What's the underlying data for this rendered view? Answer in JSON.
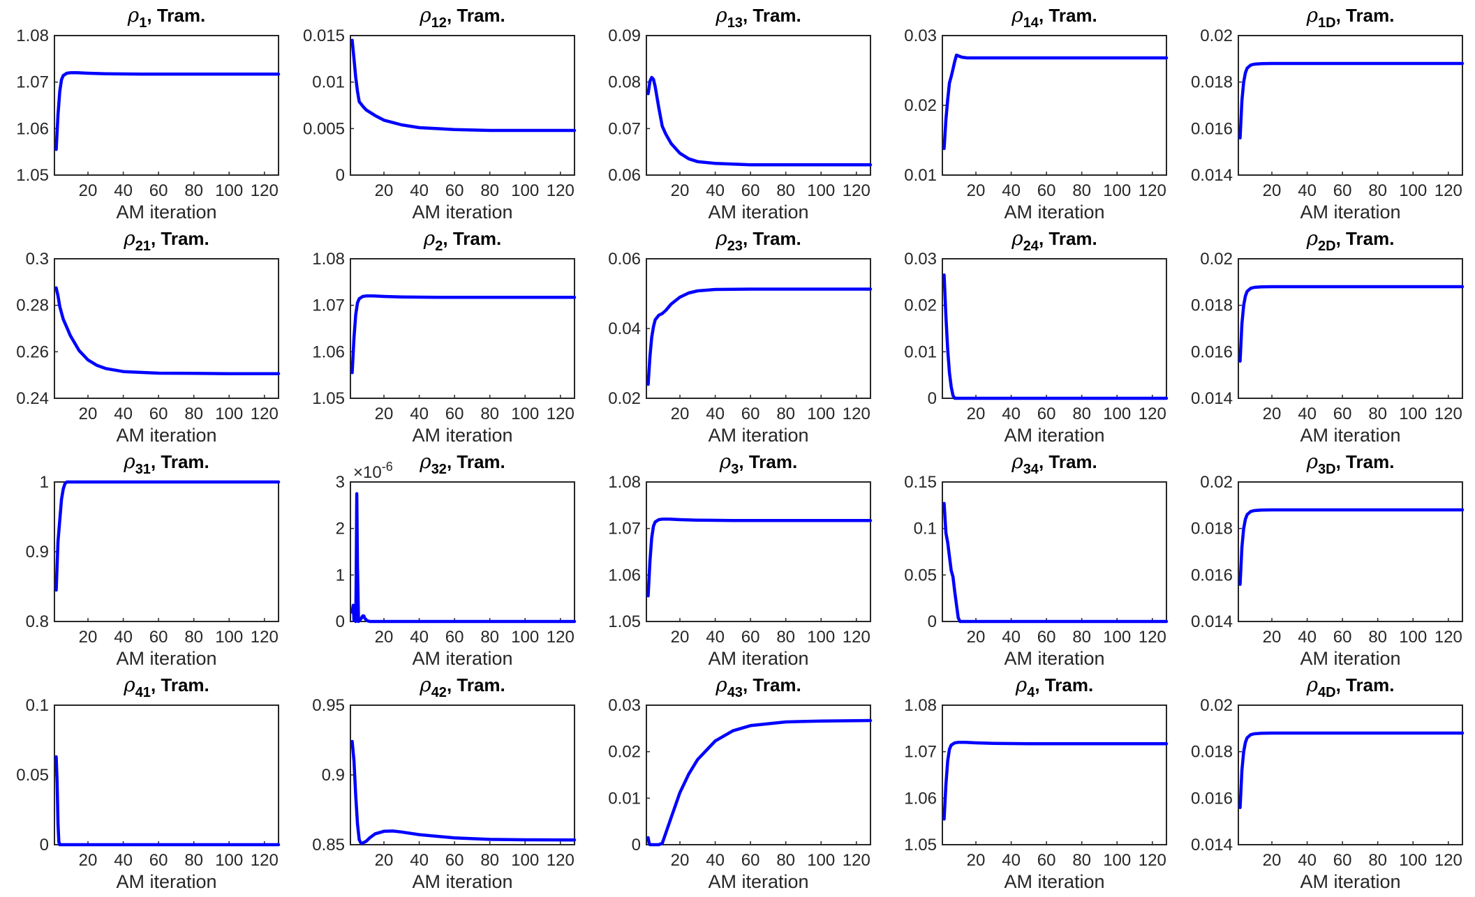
{
  "figure": {
    "line_color": "#0000FF"
  },
  "chart_data": [
    {
      "type": "line",
      "sub": "1",
      "title_suffix": ", Tram.",
      "xlabel": "AM iteration",
      "xlim": [
        1,
        128
      ],
      "ylim": [
        1.05,
        1.08
      ],
      "xticks": [
        "20",
        "40",
        "60",
        "80",
        "100",
        "120"
      ],
      "yticks": [
        "1.05",
        "1.06",
        "1.07",
        "1.08"
      ],
      "x": [
        2,
        3,
        4,
        5,
        6,
        8,
        10,
        14,
        20,
        30,
        50,
        80,
        128
      ],
      "y": [
        1.0555,
        1.063,
        1.068,
        1.0705,
        1.0714,
        1.0719,
        1.072,
        1.072,
        1.0719,
        1.0718,
        1.0717,
        1.0717,
        1.0717
      ]
    },
    {
      "type": "line",
      "sub": "12",
      "title_suffix": ", Tram.",
      "xlabel": "AM iteration",
      "xlim": [
        1,
        128
      ],
      "ylim": [
        0,
        0.015
      ],
      "xticks": [
        "20",
        "40",
        "60",
        "80",
        "100",
        "120"
      ],
      "yticks": [
        "0",
        "0.005",
        "0.01",
        "0.015"
      ],
      "x": [
        2,
        3,
        4,
        5,
        6,
        8,
        10,
        15,
        20,
        30,
        40,
        60,
        80,
        100,
        128
      ],
      "y": [
        0.0145,
        0.0125,
        0.0105,
        0.009,
        0.0079,
        0.0074,
        0.007,
        0.0064,
        0.0059,
        0.0054,
        0.0051,
        0.0049,
        0.0048,
        0.0048,
        0.0048
      ]
    },
    {
      "type": "line",
      "sub": "13",
      "title_suffix": ", Tram.",
      "xlabel": "AM iteration",
      "xlim": [
        1,
        128
      ],
      "ylim": [
        0.06,
        0.09
      ],
      "xticks": [
        "20",
        "40",
        "60",
        "80",
        "100",
        "120"
      ],
      "yticks": [
        "0.06",
        "0.07",
        "0.08",
        "0.09"
      ],
      "x": [
        2,
        3,
        4,
        5,
        6,
        8,
        10,
        12,
        15,
        20,
        25,
        30,
        40,
        60,
        80,
        100,
        128
      ],
      "y": [
        0.0775,
        0.0802,
        0.081,
        0.0806,
        0.079,
        0.0745,
        0.0705,
        0.0688,
        0.0668,
        0.0647,
        0.0635,
        0.0629,
        0.0625,
        0.0622,
        0.0622,
        0.0622,
        0.0622
      ]
    },
    {
      "type": "line",
      "sub": "14",
      "title_suffix": ", Tram.",
      "xlabel": "AM iteration",
      "xlim": [
        1,
        128
      ],
      "ylim": [
        0.01,
        0.03
      ],
      "xticks": [
        "20",
        "40",
        "60",
        "80",
        "100",
        "120"
      ],
      "yticks": [
        "0.01",
        "0.02",
        "0.03"
      ],
      "x": [
        2,
        3,
        4,
        5,
        6,
        7,
        8,
        9,
        10,
        12,
        15,
        20,
        40,
        80,
        128
      ],
      "y": [
        0.0138,
        0.018,
        0.0208,
        0.0232,
        0.0241,
        0.0252,
        0.0263,
        0.0272,
        0.0271,
        0.0269,
        0.0268,
        0.0268,
        0.0268,
        0.0268,
        0.0268
      ]
    },
    {
      "type": "line",
      "sub": "1D",
      "title_suffix": ", Tram.",
      "xlabel": "AM iteration",
      "xlim": [
        1,
        128
      ],
      "ylim": [
        0.014,
        0.02
      ],
      "xticks": [
        "20",
        "40",
        "60",
        "80",
        "100",
        "120"
      ],
      "yticks": [
        "0.014",
        "0.016",
        "0.018",
        "0.02"
      ],
      "x": [
        2,
        3,
        4,
        5,
        6,
        8,
        10,
        14,
        20,
        30,
        50,
        80,
        128
      ],
      "y": [
        0.0156,
        0.0172,
        0.018,
        0.0184,
        0.0186,
        0.01873,
        0.01877,
        0.01879,
        0.0188,
        0.0188,
        0.0188,
        0.0188,
        0.0188
      ]
    },
    {
      "type": "line",
      "sub": "21",
      "title_suffix": ", Tram.",
      "xlabel": "AM iteration",
      "xlim": [
        1,
        128
      ],
      "ylim": [
        0.24,
        0.3
      ],
      "xticks": [
        "20",
        "40",
        "60",
        "80",
        "100",
        "120"
      ],
      "yticks": [
        "0.24",
        "0.26",
        "0.28",
        "0.3"
      ],
      "x": [
        2,
        3,
        4,
        6,
        8,
        10,
        15,
        20,
        25,
        30,
        40,
        60,
        80,
        100,
        128
      ],
      "y": [
        0.2875,
        0.284,
        0.2795,
        0.274,
        0.2705,
        0.267,
        0.2605,
        0.2565,
        0.2542,
        0.2528,
        0.2515,
        0.2508,
        0.2507,
        0.2506,
        0.2506
      ]
    },
    {
      "type": "line",
      "sub": "2",
      "title_suffix": ", Tram.",
      "xlabel": "AM iteration",
      "xlim": [
        1,
        128
      ],
      "ylim": [
        1.05,
        1.08
      ],
      "xticks": [
        "20",
        "40",
        "60",
        "80",
        "100",
        "120"
      ],
      "yticks": [
        "1.05",
        "1.06",
        "1.07",
        "1.08"
      ],
      "x": [
        2,
        3,
        4,
        5,
        6,
        8,
        10,
        14,
        20,
        30,
        50,
        80,
        128
      ],
      "y": [
        1.0555,
        1.063,
        1.068,
        1.0705,
        1.0714,
        1.0719,
        1.072,
        1.072,
        1.0719,
        1.0718,
        1.0717,
        1.0717,
        1.0717
      ]
    },
    {
      "type": "line",
      "sub": "23",
      "title_suffix": ", Tram.",
      "xlabel": "AM iteration",
      "xlim": [
        1,
        128
      ],
      "ylim": [
        0.02,
        0.06
      ],
      "xticks": [
        "20",
        "40",
        "60",
        "80",
        "100",
        "120"
      ],
      "yticks": [
        "0.02",
        "0.04",
        "0.06"
      ],
      "x": [
        2,
        3,
        4,
        5,
        6,
        8,
        10,
        12,
        15,
        20,
        25,
        30,
        40,
        60,
        80,
        128
      ],
      "y": [
        0.024,
        0.032,
        0.0375,
        0.0405,
        0.0425,
        0.0438,
        0.0443,
        0.0452,
        0.047,
        0.049,
        0.0502,
        0.0508,
        0.0512,
        0.0513,
        0.0513,
        0.0513
      ]
    },
    {
      "type": "line",
      "sub": "24",
      "title_suffix": ", Tram.",
      "xlabel": "AM iteration",
      "xlim": [
        1,
        128
      ],
      "ylim": [
        0,
        0.03
      ],
      "xticks": [
        "20",
        "40",
        "60",
        "80",
        "100",
        "120"
      ],
      "yticks": [
        "0",
        "0.01",
        "0.02",
        "0.03"
      ],
      "x": [
        2,
        3,
        4,
        5,
        6,
        7,
        8,
        10,
        20,
        60,
        128
      ],
      "y": [
        0.0265,
        0.0175,
        0.0105,
        0.0055,
        0.0025,
        0.0006,
        0,
        0,
        0,
        0,
        0
      ]
    },
    {
      "type": "line",
      "sub": "2D",
      "title_suffix": ", Tram.",
      "xlabel": "AM iteration",
      "xlim": [
        1,
        128
      ],
      "ylim": [
        0.014,
        0.02
      ],
      "xticks": [
        "20",
        "40",
        "60",
        "80",
        "100",
        "120"
      ],
      "yticks": [
        "0.014",
        "0.016",
        "0.018",
        "0.02"
      ],
      "x": [
        2,
        3,
        4,
        5,
        6,
        8,
        10,
        14,
        20,
        30,
        50,
        80,
        128
      ],
      "y": [
        0.0156,
        0.0172,
        0.018,
        0.0184,
        0.0186,
        0.01873,
        0.01877,
        0.01879,
        0.0188,
        0.0188,
        0.0188,
        0.0188,
        0.0188
      ]
    },
    {
      "type": "line",
      "sub": "31",
      "title_suffix": ", Tram.",
      "xlabel": "AM iteration",
      "xlim": [
        1,
        128
      ],
      "ylim": [
        0.8,
        1
      ],
      "xticks": [
        "20",
        "40",
        "60",
        "80",
        "100",
        "120"
      ],
      "yticks": [
        "0.8",
        "0.9",
        "1"
      ],
      "x": [
        2,
        3,
        4,
        5,
        6,
        7,
        8,
        10,
        20,
        60,
        128
      ],
      "y": [
        0.845,
        0.915,
        0.945,
        0.975,
        0.99,
        0.998,
        1,
        1,
        1,
        1,
        1
      ]
    },
    {
      "type": "line",
      "sub": "32",
      "title_suffix": ", Tram.",
      "xlabel": "AM iteration",
      "xlim": [
        1,
        128
      ],
      "ylim": [
        0,
        3
      ],
      "xticks": [
        "20",
        "40",
        "60",
        "80",
        "100",
        "120"
      ],
      "yticks": [
        "0",
        "1",
        "2",
        "3"
      ],
      "exponent": "×10",
      "exponent_power": "-6",
      "x": [
        2,
        2.6,
        3,
        3.6,
        4,
        4.3,
        4.6,
        5,
        5.6,
        6,
        7,
        8,
        8.6,
        9,
        10,
        11,
        12,
        14,
        20,
        60,
        128
      ],
      "y": [
        0.2,
        0.35,
        0.02,
        0.15,
        0,
        1.0,
        2.75,
        1.2,
        0,
        0.02,
        0.06,
        0.12,
        0.12,
        0.08,
        0.03,
        0.01,
        0,
        0,
        0,
        0,
        0
      ]
    },
    {
      "type": "line",
      "sub": "3",
      "title_suffix": ", Tram.",
      "xlabel": "AM iteration",
      "xlim": [
        1,
        128
      ],
      "ylim": [
        1.05,
        1.08
      ],
      "xticks": [
        "20",
        "40",
        "60",
        "80",
        "100",
        "120"
      ],
      "yticks": [
        "1.05",
        "1.06",
        "1.07",
        "1.08"
      ],
      "x": [
        2,
        3,
        4,
        5,
        6,
        8,
        10,
        14,
        20,
        30,
        50,
        80,
        128
      ],
      "y": [
        1.0555,
        1.063,
        1.068,
        1.0705,
        1.0714,
        1.0719,
        1.072,
        1.072,
        1.0719,
        1.0718,
        1.0717,
        1.0717,
        1.0717
      ]
    },
    {
      "type": "line",
      "sub": "34",
      "title_suffix": ", Tram.",
      "xlabel": "AM iteration",
      "xlim": [
        1,
        128
      ],
      "ylim": [
        0,
        0.15
      ],
      "xticks": [
        "20",
        "40",
        "60",
        "80",
        "100",
        "120"
      ],
      "yticks": [
        "0",
        "0.05",
        "0.1",
        "0.15"
      ],
      "x": [
        2,
        3,
        4,
        5,
        6,
        7,
        8,
        9,
        10,
        11,
        12,
        20,
        60,
        128
      ],
      "y": [
        0.127,
        0.095,
        0.085,
        0.07,
        0.055,
        0.048,
        0.032,
        0.018,
        0.004,
        0,
        0,
        0,
        0,
        0
      ]
    },
    {
      "type": "line",
      "sub": "3D",
      "title_suffix": ", Tram.",
      "xlabel": "AM iteration",
      "xlim": [
        1,
        128
      ],
      "ylim": [
        0.014,
        0.02
      ],
      "xticks": [
        "20",
        "40",
        "60",
        "80",
        "100",
        "120"
      ],
      "yticks": [
        "0.014",
        "0.016",
        "0.018",
        "0.02"
      ],
      "x": [
        2,
        3,
        4,
        5,
        6,
        8,
        10,
        14,
        20,
        30,
        50,
        80,
        128
      ],
      "y": [
        0.0156,
        0.0172,
        0.018,
        0.0184,
        0.0186,
        0.01873,
        0.01877,
        0.01879,
        0.0188,
        0.0188,
        0.0188,
        0.0188,
        0.0188
      ]
    },
    {
      "type": "line",
      "sub": "41",
      "title_suffix": ", Tram.",
      "xlabel": "AM iteration",
      "xlim": [
        1,
        128
      ],
      "ylim": [
        0,
        0.1
      ],
      "xticks": [
        "20",
        "40",
        "60",
        "80",
        "100",
        "120"
      ],
      "yticks": [
        "0",
        "0.05",
        "0.1"
      ],
      "x": [
        2,
        2.5,
        3,
        3.5,
        4,
        10,
        60,
        128
      ],
      "y": [
        0.063,
        0.045,
        0.015,
        0.002,
        0,
        0,
        0,
        0
      ]
    },
    {
      "type": "line",
      "sub": "42",
      "title_suffix": ", Tram.",
      "xlabel": "AM iteration",
      "xlim": [
        1,
        128
      ],
      "ylim": [
        0.85,
        0.95
      ],
      "xticks": [
        "20",
        "40",
        "60",
        "80",
        "100",
        "120"
      ],
      "yticks": [
        "0.85",
        "0.9",
        "0.95"
      ],
      "x": [
        2,
        3,
        4,
        5,
        6,
        7,
        8,
        10,
        12,
        15,
        20,
        25,
        30,
        40,
        60,
        80,
        100,
        128
      ],
      "y": [
        0.924,
        0.91,
        0.885,
        0.865,
        0.8535,
        0.851,
        0.8512,
        0.8525,
        0.855,
        0.8578,
        0.8596,
        0.8598,
        0.8591,
        0.8572,
        0.8549,
        0.8538,
        0.8535,
        0.8534
      ]
    },
    {
      "type": "line",
      "sub": "43",
      "title_suffix": ", Tram.",
      "xlabel": "AM iteration",
      "xlim": [
        1,
        128
      ],
      "ylim": [
        0,
        0.03
      ],
      "xticks": [
        "20",
        "40",
        "60",
        "80",
        "100",
        "120"
      ],
      "yticks": [
        "0",
        "0.01",
        "0.02",
        "0.03"
      ],
      "x": [
        2,
        2.5,
        3,
        4,
        6,
        8,
        10,
        12,
        15,
        20,
        25,
        30,
        40,
        50,
        60,
        80,
        100,
        128
      ],
      "y": [
        0.0015,
        0.0004,
        0,
        0,
        0,
        0,
        0.0003,
        0.0025,
        0.0058,
        0.0112,
        0.0152,
        0.0183,
        0.0223,
        0.0245,
        0.0256,
        0.0264,
        0.0266,
        0.0267
      ]
    },
    {
      "type": "line",
      "sub": "4",
      "title_suffix": ", Tram.",
      "xlabel": "AM iteration",
      "xlim": [
        1,
        128
      ],
      "ylim": [
        1.05,
        1.08
      ],
      "xticks": [
        "20",
        "40",
        "60",
        "80",
        "100",
        "120"
      ],
      "yticks": [
        "1.05",
        "1.06",
        "1.07",
        "1.08"
      ],
      "x": [
        2,
        3,
        4,
        5,
        6,
        8,
        10,
        14,
        20,
        30,
        50,
        80,
        128
      ],
      "y": [
        1.0555,
        1.063,
        1.068,
        1.0705,
        1.0714,
        1.0719,
        1.072,
        1.072,
        1.0719,
        1.0718,
        1.0717,
        1.0717,
        1.0717
      ]
    },
    {
      "type": "line",
      "sub": "4D",
      "title_suffix": ", Tram.",
      "xlabel": "AM iteration",
      "xlim": [
        1,
        128
      ],
      "ylim": [
        0.014,
        0.02
      ],
      "xticks": [
        "20",
        "40",
        "60",
        "80",
        "100",
        "120"
      ],
      "yticks": [
        "0.014",
        "0.016",
        "0.018",
        "0.02"
      ],
      "x": [
        2,
        3,
        4,
        5,
        6,
        8,
        10,
        14,
        20,
        30,
        50,
        80,
        128
      ],
      "y": [
        0.0156,
        0.0172,
        0.018,
        0.0184,
        0.0186,
        0.01873,
        0.01877,
        0.01879,
        0.0188,
        0.0188,
        0.0188,
        0.0188,
        0.0188
      ]
    }
  ]
}
